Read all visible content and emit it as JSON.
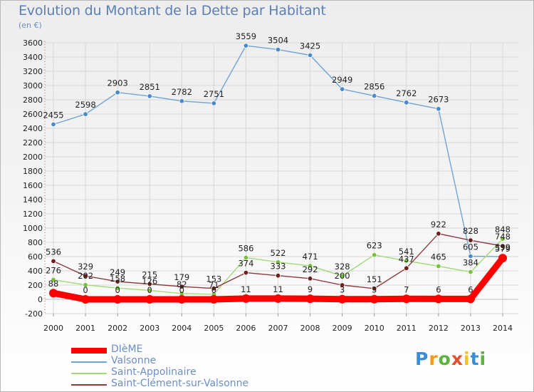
{
  "title": "Evolution du Montant de la Dette par Habitant",
  "subtitle": "(en €)",
  "logo": {
    "text": "Proxiti",
    "letter_colors": [
      "#3a8ed8",
      "#f39a1d",
      "#5ab33c",
      "#e84e2a",
      "#f6c21a",
      "#3a8ed8",
      "#5ab33c"
    ]
  },
  "chart_data": {
    "type": "line",
    "x": [
      "2000",
      "2001",
      "2002",
      "2003",
      "2004",
      "2005",
      "2006",
      "2007",
      "2008",
      "2009",
      "2010",
      "2011",
      "2012",
      "2013",
      "2014"
    ],
    "ylim": [
      -200,
      3600
    ],
    "yticks": [
      -200,
      0,
      200,
      400,
      600,
      800,
      1000,
      1200,
      1400,
      1600,
      1800,
      2000,
      2200,
      2400,
      2600,
      2800,
      3000,
      3200,
      3400,
      3600
    ],
    "grid": true,
    "legend_position": "bottom-left",
    "series": [
      {
        "name": "Valsonne",
        "color": "#6fa4d6",
        "marker": "#4a8ac8",
        "values": [
          2455,
          2598,
          2903,
          2851,
          2782,
          2751,
          3559,
          3504,
          3425,
          2949,
          2856,
          2762,
          2673,
          605,
          599
        ],
        "labels": [
          "2455",
          "2598",
          "2903",
          "2851",
          "2782",
          "2751",
          "3559",
          "3504",
          "3425",
          "2949",
          "2856",
          "2762",
          "2673",
          "605",
          "599"
        ]
      },
      {
        "name": "Saint-Appolinaire",
        "color": "#a3d979",
        "marker": "#77c23c",
        "values": [
          276,
          202,
          158,
          126,
          82,
          71,
          586,
          522,
          471,
          328,
          623,
          541,
          465,
          384,
          848
        ],
        "labels": [
          "276",
          "202",
          "158",
          "126",
          "82",
          "71",
          "586",
          "522",
          "471",
          "328",
          "623",
          "541",
          "465",
          "384",
          "848"
        ]
      },
      {
        "name": "Saint-Clément-sur-Valsonne",
        "color": "#8c3a3a",
        "marker": "#6b1f1f",
        "values": [
          536,
          329,
          249,
          215,
          179,
          153,
          374,
          333,
          292,
          200,
          151,
          437,
          922,
          828,
          748
        ],
        "labels": [
          "536",
          "329",
          "249",
          "215",
          "179",
          "153",
          "374",
          "333",
          "292",
          "200",
          "151",
          "437",
          "922",
          "828",
          "748"
        ]
      },
      {
        "name": "DIèME",
        "color": "#ff0000",
        "marker": "#ff0000",
        "values": [
          88,
          0,
          0,
          0,
          0,
          0,
          11,
          11,
          9,
          3,
          3,
          7,
          6,
          6,
          579
        ],
        "labels": [
          "88",
          "0",
          "0",
          "0",
          "0",
          "0",
          "11",
          "11",
          "9",
          "3",
          "3",
          "7",
          "6",
          "6",
          "579"
        ]
      }
    ]
  }
}
